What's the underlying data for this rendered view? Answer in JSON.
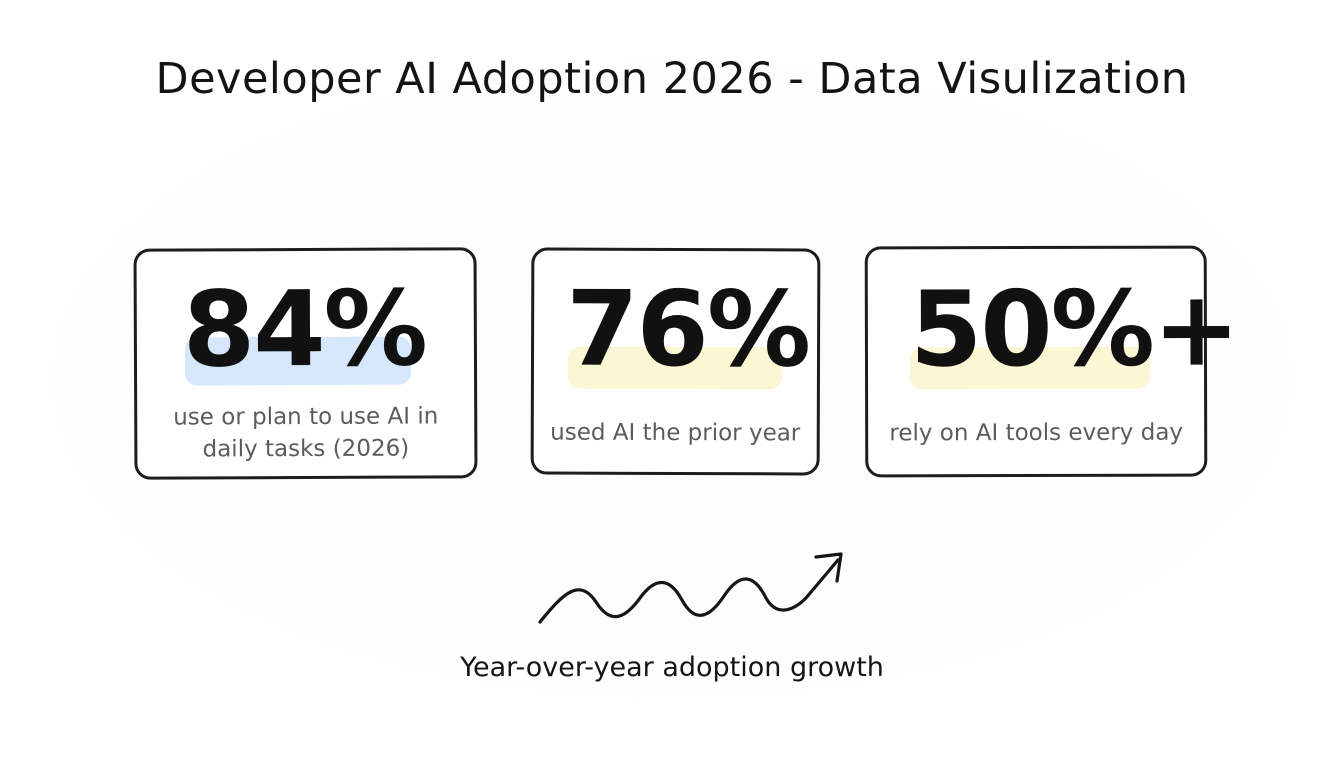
{
  "title": "Developer AI Adoption 2026 - Data Visulization",
  "stats": [
    {
      "value": "84%",
      "caption_line1": "use or plan to use AI in",
      "caption_line2": "daily tasks (2026)",
      "highlight_color": "#d6e6fb"
    },
    {
      "value": "76%",
      "caption_line1": "used AI the prior year",
      "highlight_color": "#fbf6d3"
    },
    {
      "value": "50%+",
      "caption_line1": "rely on AI tools every day",
      "highlight_color": "#fbf6d3"
    }
  ],
  "growth": {
    "icon": "trend-up-arrow-icon",
    "label": "Year-over-year adoption growth"
  },
  "colors": {
    "ink": "#151515",
    "caption": "#5c5c5c",
    "highlight_blue": "#d6e6fb",
    "highlight_yellow": "#fbf6d3"
  }
}
